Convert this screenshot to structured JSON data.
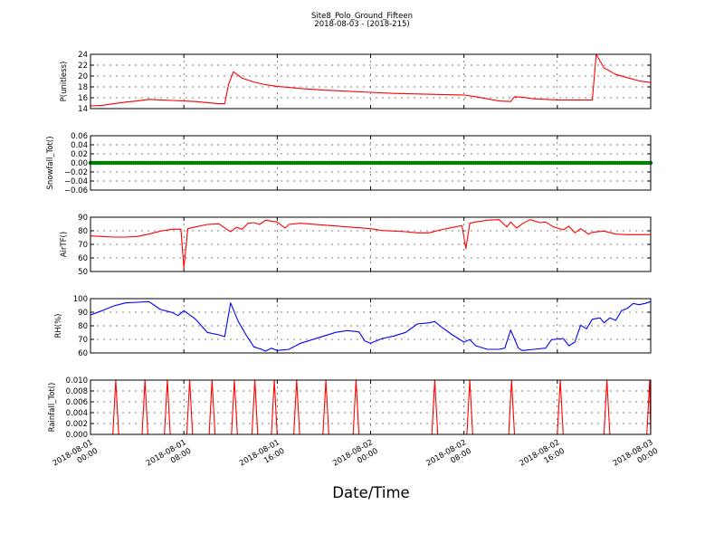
{
  "figure": {
    "title": "Site8_Polo_Ground_Fifteen",
    "subtitle": "2018-08-03 - (2018-215)",
    "xlabel": "Date/Time"
  },
  "x_ticks": [
    {
      "t": 0,
      "line1": "2018-08-01",
      "line2": "00:00"
    },
    {
      "t": 8,
      "line1": "2018-08-01",
      "line2": "08:00"
    },
    {
      "t": 16,
      "line1": "2018-08-01",
      "line2": "16:00"
    },
    {
      "t": 24,
      "line1": "2018-08-02",
      "line2": "00:00"
    },
    {
      "t": 32,
      "line1": "2018-08-02",
      "line2": "08:00"
    },
    {
      "t": 40,
      "line1": "2018-08-02",
      "line2": "16:00"
    },
    {
      "t": 48,
      "line1": "2018-08-03",
      "line2": "00:00"
    }
  ],
  "chart_data": [
    {
      "type": "line",
      "ylabel": "P(unitless)",
      "xlim": [
        "2018-08-01 00:00",
        "2018-08-03 00:00"
      ],
      "ylim": [
        14,
        24
      ],
      "yticks": [
        "14",
        "16",
        "18",
        "20",
        "22",
        "24"
      ],
      "grid": true,
      "color": "#ff0000",
      "marker": "none",
      "points": [
        {
          "x": "2018-08-01 00:00",
          "y": 14.5
        },
        {
          "x": "2018-08-01 01:00",
          "y": 14.6
        },
        {
          "x": "2018-08-01 02:00",
          "y": 14.9
        },
        {
          "x": "2018-08-01 03:00",
          "y": 15.2
        },
        {
          "x": "2018-08-01 04:00",
          "y": 15.4
        },
        {
          "x": "2018-08-01 05:00",
          "y": 15.7
        },
        {
          "x": "2018-08-01 06:00",
          "y": 15.6
        },
        {
          "x": "2018-08-01 07:00",
          "y": 15.5
        },
        {
          "x": "2018-08-01 08:00",
          "y": 15.4
        },
        {
          "x": "2018-08-01 09:00",
          "y": 15.3
        },
        {
          "x": "2018-08-01 10:00",
          "y": 15.1
        },
        {
          "x": "2018-08-01 11:00",
          "y": 14.9
        },
        {
          "x": "2018-08-01 11:30",
          "y": 14.9
        },
        {
          "x": "2018-08-01 11:50",
          "y": 18.5
        },
        {
          "x": "2018-08-01 12:15",
          "y": 20.8
        },
        {
          "x": "2018-08-01 13:00",
          "y": 19.6
        },
        {
          "x": "2018-08-01 14:00",
          "y": 18.9
        },
        {
          "x": "2018-08-01 15:00",
          "y": 18.4
        },
        {
          "x": "2018-08-01 16:00",
          "y": 18.1
        },
        {
          "x": "2018-08-01 17:00",
          "y": 17.9
        },
        {
          "x": "2018-08-01 18:00",
          "y": 17.7
        },
        {
          "x": "2018-08-01 20:00",
          "y": 17.4
        },
        {
          "x": "2018-08-01 22:00",
          "y": 17.2
        },
        {
          "x": "2018-08-02 00:00",
          "y": 17.0
        },
        {
          "x": "2018-08-02 02:00",
          "y": 16.8
        },
        {
          "x": "2018-08-02 04:00",
          "y": 16.7
        },
        {
          "x": "2018-08-02 06:00",
          "y": 16.6
        },
        {
          "x": "2018-08-02 08:00",
          "y": 16.5
        },
        {
          "x": "2018-08-02 09:00",
          "y": 16.2
        },
        {
          "x": "2018-08-02 10:00",
          "y": 15.8
        },
        {
          "x": "2018-08-02 11:00",
          "y": 15.4
        },
        {
          "x": "2018-08-02 12:00",
          "y": 15.3
        },
        {
          "x": "2018-08-02 12:20",
          "y": 16.2
        },
        {
          "x": "2018-08-02 13:00",
          "y": 16.1
        },
        {
          "x": "2018-08-02 14:00",
          "y": 15.8
        },
        {
          "x": "2018-08-02 16:00",
          "y": 15.6
        },
        {
          "x": "2018-08-02 18:00",
          "y": 15.6
        },
        {
          "x": "2018-08-02 19:00",
          "y": 15.6
        },
        {
          "x": "2018-08-02 19:20",
          "y": 24.0
        },
        {
          "x": "2018-08-02 20:00",
          "y": 21.5
        },
        {
          "x": "2018-08-02 21:00",
          "y": 20.3
        },
        {
          "x": "2018-08-02 22:00",
          "y": 19.7
        },
        {
          "x": "2018-08-02 23:00",
          "y": 19.1
        },
        {
          "x": "2018-08-03 00:00",
          "y": 18.8
        }
      ]
    },
    {
      "type": "scatter",
      "ylabel": "Snowfall_Tot()",
      "xlim": [
        "2018-08-01 00:00",
        "2018-08-03 00:00"
      ],
      "ylim": [
        -0.06,
        0.06
      ],
      "yticks": [
        "−0.06",
        "−0.04",
        "−0.02",
        "0.00",
        "0.02",
        "0.04",
        "0.06"
      ],
      "grid": true,
      "color": "#008000",
      "marker": "circle",
      "constant_value": 0.0,
      "sample_interval_minutes": 10
    },
    {
      "type": "line",
      "ylabel": "AirTF()",
      "xlim": [
        "2018-08-01 00:00",
        "2018-08-03 00:00"
      ],
      "ylim": [
        45,
        90
      ],
      "yticks": [
        "50",
        "60",
        "70",
        "80",
        "90"
      ],
      "grid": true,
      "color": "#ff0000",
      "marker": "none",
      "points": [
        {
          "x": "2018-08-01 00:00",
          "y": 74.5
        },
        {
          "x": "2018-08-01 01:00",
          "y": 74.0
        },
        {
          "x": "2018-08-01 02:00",
          "y": 73.5
        },
        {
          "x": "2018-08-01 03:00",
          "y": 73.5
        },
        {
          "x": "2018-08-01 04:00",
          "y": 74.0
        },
        {
          "x": "2018-08-01 05:00",
          "y": 76.0
        },
        {
          "x": "2018-08-01 06:00",
          "y": 78.5
        },
        {
          "x": "2018-08-01 07:00",
          "y": 80.0
        },
        {
          "x": "2018-08-01 07:45",
          "y": 80.0
        },
        {
          "x": "2018-08-01 08:00",
          "y": 48.0
        },
        {
          "x": "2018-08-01 08:20",
          "y": 80.5
        },
        {
          "x": "2018-08-01 09:00",
          "y": 82.0
        },
        {
          "x": "2018-08-01 10:00",
          "y": 84.0
        },
        {
          "x": "2018-08-01 11:00",
          "y": 84.5
        },
        {
          "x": "2018-08-01 11:40",
          "y": 80.0
        },
        {
          "x": "2018-08-01 12:00",
          "y": 78.0
        },
        {
          "x": "2018-08-01 12:30",
          "y": 81.5
        },
        {
          "x": "2018-08-01 13:00",
          "y": 80.0
        },
        {
          "x": "2018-08-01 13:30",
          "y": 85.0
        },
        {
          "x": "2018-08-01 14:00",
          "y": 85.5
        },
        {
          "x": "2018-08-01 14:30",
          "y": 84.0
        },
        {
          "x": "2018-08-01 15:00",
          "y": 87.5
        },
        {
          "x": "2018-08-01 16:00",
          "y": 86.0
        },
        {
          "x": "2018-08-01 16:40",
          "y": 81.0
        },
        {
          "x": "2018-08-01 17:00",
          "y": 84.0
        },
        {
          "x": "2018-08-01 18:00",
          "y": 85.0
        },
        {
          "x": "2018-08-01 20:00",
          "y": 83.5
        },
        {
          "x": "2018-08-01 22:00",
          "y": 82.0
        },
        {
          "x": "2018-08-02 00:00",
          "y": 80.5
        },
        {
          "x": "2018-08-02 01:00",
          "y": 79.0
        },
        {
          "x": "2018-08-02 02:00",
          "y": 78.5
        },
        {
          "x": "2018-08-02 03:00",
          "y": 78.0
        },
        {
          "x": "2018-08-02 04:00",
          "y": 77.0
        },
        {
          "x": "2018-08-02 05:00",
          "y": 77.0
        },
        {
          "x": "2018-08-02 06:00",
          "y": 79.5
        },
        {
          "x": "2018-08-02 07:00",
          "y": 81.5
        },
        {
          "x": "2018-08-02 07:50",
          "y": 83.0
        },
        {
          "x": "2018-08-02 08:10",
          "y": 64.0
        },
        {
          "x": "2018-08-02 08:30",
          "y": 85.0
        },
        {
          "x": "2018-08-02 09:00",
          "y": 86.0
        },
        {
          "x": "2018-08-02 10:00",
          "y": 87.5
        },
        {
          "x": "2018-08-02 11:00",
          "y": 88.0
        },
        {
          "x": "2018-08-02 11:40",
          "y": 82.0
        },
        {
          "x": "2018-08-02 12:00",
          "y": 86.0
        },
        {
          "x": "2018-08-02 12:30",
          "y": 81.0
        },
        {
          "x": "2018-08-02 13:00",
          "y": 84.5
        },
        {
          "x": "2018-08-02 13:40",
          "y": 88.0
        },
        {
          "x": "2018-08-02 14:30",
          "y": 85.5
        },
        {
          "x": "2018-08-02 15:00",
          "y": 86.0
        },
        {
          "x": "2018-08-02 15:40",
          "y": 82.0
        },
        {
          "x": "2018-08-02 16:30",
          "y": 79.5
        },
        {
          "x": "2018-08-02 17:00",
          "y": 82.5
        },
        {
          "x": "2018-08-02 17:30",
          "y": 77.0
        },
        {
          "x": "2018-08-02 18:00",
          "y": 80.5
        },
        {
          "x": "2018-08-02 18:40",
          "y": 76.0
        },
        {
          "x": "2018-08-02 19:00",
          "y": 77.5
        },
        {
          "x": "2018-08-02 20:00",
          "y": 78.5
        },
        {
          "x": "2018-08-02 21:00",
          "y": 76.0
        },
        {
          "x": "2018-08-02 22:00",
          "y": 75.5
        },
        {
          "x": "2018-08-03 00:00",
          "y": 75.5
        }
      ]
    },
    {
      "type": "line",
      "ylabel": "RH(%)",
      "xlim": [
        "2018-08-01 00:00",
        "2018-08-03 00:00"
      ],
      "ylim": [
        55,
        100
      ],
      "yticks": [
        "60",
        "70",
        "80",
        "90",
        "100"
      ],
      "grid": true,
      "color": "#0000ff",
      "marker": "none",
      "points": [
        {
          "x": "2018-08-01 00:00",
          "y": 86.5
        },
        {
          "x": "2018-08-01 01:00",
          "y": 90.0
        },
        {
          "x": "2018-08-01 02:00",
          "y": 94.0
        },
        {
          "x": "2018-08-01 03:00",
          "y": 96.5
        },
        {
          "x": "2018-08-01 04:00",
          "y": 97.0
        },
        {
          "x": "2018-08-01 05:00",
          "y": 97.5
        },
        {
          "x": "2018-08-01 06:00",
          "y": 91.0
        },
        {
          "x": "2018-08-01 07:00",
          "y": 88.5
        },
        {
          "x": "2018-08-01 07:30",
          "y": 86.0
        },
        {
          "x": "2018-08-01 08:00",
          "y": 90.0
        },
        {
          "x": "2018-08-01 09:00",
          "y": 83.0
        },
        {
          "x": "2018-08-01 10:00",
          "y": 72.0
        },
        {
          "x": "2018-08-01 11:00",
          "y": 70.0
        },
        {
          "x": "2018-08-01 11:30",
          "y": 68.5
        },
        {
          "x": "2018-08-01 12:00",
          "y": 96.5
        },
        {
          "x": "2018-08-01 12:40",
          "y": 81.0
        },
        {
          "x": "2018-08-01 13:20",
          "y": 70.0
        },
        {
          "x": "2018-08-01 14:00",
          "y": 60.0
        },
        {
          "x": "2018-08-01 14:40",
          "y": 58.0
        },
        {
          "x": "2018-08-01 15:00",
          "y": 56.5
        },
        {
          "x": "2018-08-01 15:30",
          "y": 59.0
        },
        {
          "x": "2018-08-01 16:00",
          "y": 57.0
        },
        {
          "x": "2018-08-01 17:00",
          "y": 58.0
        },
        {
          "x": "2018-08-01 18:00",
          "y": 63.0
        },
        {
          "x": "2018-08-01 19:00",
          "y": 66.0
        },
        {
          "x": "2018-08-01 20:00",
          "y": 69.0
        },
        {
          "x": "2018-08-01 21:00",
          "y": 72.0
        },
        {
          "x": "2018-08-01 22:00",
          "y": 73.5
        },
        {
          "x": "2018-08-01 23:00",
          "y": 72.5
        },
        {
          "x": "2018-08-01 23:30",
          "y": 65.0
        },
        {
          "x": "2018-08-02 00:00",
          "y": 63.0
        },
        {
          "x": "2018-08-02 01:00",
          "y": 67.0
        },
        {
          "x": "2018-08-02 02:00",
          "y": 69.0
        },
        {
          "x": "2018-08-02 03:00",
          "y": 72.0
        },
        {
          "x": "2018-08-02 04:00",
          "y": 79.0
        },
        {
          "x": "2018-08-02 05:00",
          "y": 80.0
        },
        {
          "x": "2018-08-02 05:30",
          "y": 81.0
        },
        {
          "x": "2018-08-02 06:00",
          "y": 77.0
        },
        {
          "x": "2018-08-02 07:00",
          "y": 70.0
        },
        {
          "x": "2018-08-02 08:00",
          "y": 64.0
        },
        {
          "x": "2018-08-02 08:30",
          "y": 66.0
        },
        {
          "x": "2018-08-02 09:00",
          "y": 61.0
        },
        {
          "x": "2018-08-02 10:00",
          "y": 58.0
        },
        {
          "x": "2018-08-02 11:00",
          "y": 58.0
        },
        {
          "x": "2018-08-02 11:30",
          "y": 59.0
        },
        {
          "x": "2018-08-02 12:00",
          "y": 74.0
        },
        {
          "x": "2018-08-02 12:40",
          "y": 59.0
        },
        {
          "x": "2018-08-02 13:00",
          "y": 57.0
        },
        {
          "x": "2018-08-02 14:00",
          "y": 58.0
        },
        {
          "x": "2018-08-02 15:00",
          "y": 59.0
        },
        {
          "x": "2018-08-02 15:30",
          "y": 66.0
        },
        {
          "x": "2018-08-02 16:30",
          "y": 67.0
        },
        {
          "x": "2018-08-02 17:00",
          "y": 61.0
        },
        {
          "x": "2018-08-02 17:30",
          "y": 64.0
        },
        {
          "x": "2018-08-02 18:00",
          "y": 78.0
        },
        {
          "x": "2018-08-02 18:30",
          "y": 75.0
        },
        {
          "x": "2018-08-02 19:00",
          "y": 83.0
        },
        {
          "x": "2018-08-02 19:40",
          "y": 84.0
        },
        {
          "x": "2018-08-02 20:00",
          "y": 80.0
        },
        {
          "x": "2018-08-02 20:30",
          "y": 84.0
        },
        {
          "x": "2018-08-02 21:00",
          "y": 82.0
        },
        {
          "x": "2018-08-02 21:30",
          "y": 90.0
        },
        {
          "x": "2018-08-02 22:00",
          "y": 92.0
        },
        {
          "x": "2018-08-02 22:30",
          "y": 96.0
        },
        {
          "x": "2018-08-02 23:00",
          "y": 95.0
        },
        {
          "x": "2018-08-02 23:30",
          "y": 96.0
        },
        {
          "x": "2018-08-03 00:00",
          "y": 97.5
        }
      ]
    },
    {
      "type": "line",
      "ylabel": "Rainfall_Tot()",
      "xlim": [
        "2018-08-01 00:00",
        "2018-08-03 00:00"
      ],
      "ylim": [
        0.0,
        0.01
      ],
      "yticks": [
        "0.000",
        "0.002",
        "0.004",
        "0.006",
        "0.008",
        "0.010"
      ],
      "grid": true,
      "color": "#ff0000",
      "marker": "none",
      "baseline": 0.0,
      "spike_value": 0.01,
      "spike_times": [
        "2018-08-01 02:10",
        "2018-08-01 04:40",
        "2018-08-01 06:35",
        "2018-08-01 08:30",
        "2018-08-01 10:25",
        "2018-08-01 12:20",
        "2018-08-01 14:05",
        "2018-08-01 15:45",
        "2018-08-01 17:40",
        "2018-08-01 20:10",
        "2018-08-01 22:45",
        "2018-08-02 05:30",
        "2018-08-02 08:30",
        "2018-08-02 12:05",
        "2018-08-02 16:15",
        "2018-08-02 20:15",
        "2018-08-02 23:55"
      ]
    }
  ]
}
